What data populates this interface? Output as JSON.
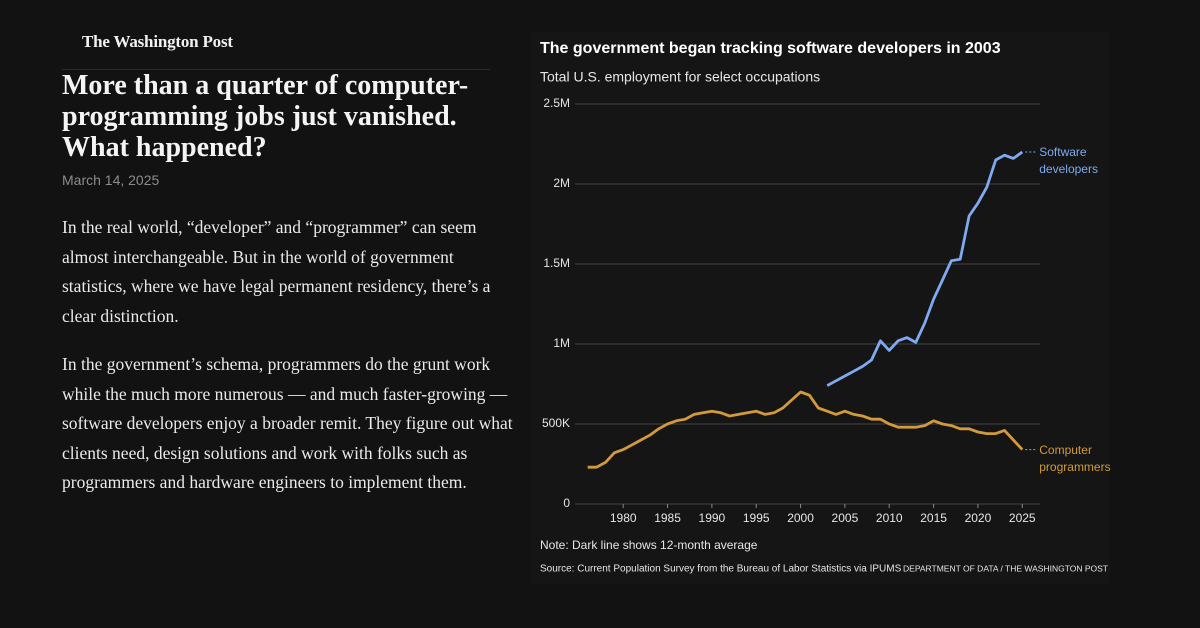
{
  "header": {
    "logo": "The Washington Post"
  },
  "article": {
    "headline": "More than a quarter of computer-programming jobs just vanished. What happened?",
    "date": "March 14, 2025",
    "paragraphs": [
      "In the real world, “developer” and “programmer” can seem almost interchangeable. But in the world of government statistics, where we have legal permanent residency, there’s a clear distinction.",
      "In the government’s schema, programmers do the grunt work while the much more numerous — and much faster-growing — software developers enjoy a broader remit. They figure out what clients need, design solutions and work with folks such as programmers and hardware engineers to implement them."
    ]
  },
  "chart_data": {
    "type": "line",
    "title": "The government began tracking software developers in 2003",
    "subtitle": "Total U.S. employment for select occupations",
    "note": "Note: Dark line shows 12-month average",
    "source": "Source: Current Population Survey from the Bureau of Labor Statistics via IPUMS",
    "credit": "DEPARTMENT OF DATA / THE WASHINGTON POST",
    "x": [
      1976,
      1977,
      1978,
      1979,
      1980,
      1981,
      1982,
      1983,
      1984,
      1985,
      1986,
      1987,
      1988,
      1989,
      1990,
      1991,
      1992,
      1993,
      1994,
      1995,
      1996,
      1997,
      1998,
      1999,
      2000,
      2001,
      2002,
      2003,
      2004,
      2005,
      2006,
      2007,
      2008,
      2009,
      2010,
      2011,
      2012,
      2013,
      2014,
      2015,
      2016,
      2017,
      2018,
      2019,
      2020,
      2021,
      2022,
      2023,
      2024,
      2025
    ],
    "series": [
      {
        "name": "Software developers",
        "color": "#7fa9f0",
        "values": [
          null,
          null,
          null,
          null,
          null,
          null,
          null,
          null,
          null,
          null,
          null,
          null,
          null,
          null,
          null,
          null,
          null,
          null,
          null,
          null,
          null,
          null,
          null,
          null,
          null,
          null,
          null,
          740000,
          770000,
          800000,
          830000,
          860000,
          900000,
          1020000,
          960000,
          1020000,
          1040000,
          1010000,
          1130000,
          1280000,
          1400000,
          1520000,
          1530000,
          1800000,
          1880000,
          1980000,
          2150000,
          2180000,
          2160000,
          2200000
        ]
      },
      {
        "name": "Computer programmers",
        "color": "#d29a3a",
        "values": [
          230000,
          230000,
          260000,
          320000,
          340000,
          370000,
          400000,
          430000,
          470000,
          500000,
          520000,
          530000,
          560000,
          570000,
          580000,
          570000,
          550000,
          560000,
          570000,
          580000,
          560000,
          570000,
          600000,
          650000,
          700000,
          680000,
          600000,
          580000,
          560000,
          580000,
          560000,
          550000,
          530000,
          530000,
          500000,
          480000,
          480000,
          480000,
          490000,
          520000,
          500000,
          490000,
          470000,
          470000,
          450000,
          440000,
          440000,
          460000,
          400000,
          340000
        ]
      }
    ],
    "xlim": [
      1974,
      2027
    ],
    "xticks": [
      1980,
      1985,
      1990,
      1995,
      2000,
      2005,
      2010,
      2015,
      2020,
      2025
    ],
    "ylim": [
      0,
      2500000
    ],
    "yticks": [
      0,
      {
        "value": 500000,
        "label": "500K"
      },
      {
        "value": 1000000,
        "label": "1M"
      },
      {
        "value": 1500000,
        "label": "1.5M"
      },
      {
        "value": 2000000,
        "label": "2M"
      },
      {
        "value": 2500000,
        "label": "2.5M"
      }
    ],
    "grid": true
  }
}
